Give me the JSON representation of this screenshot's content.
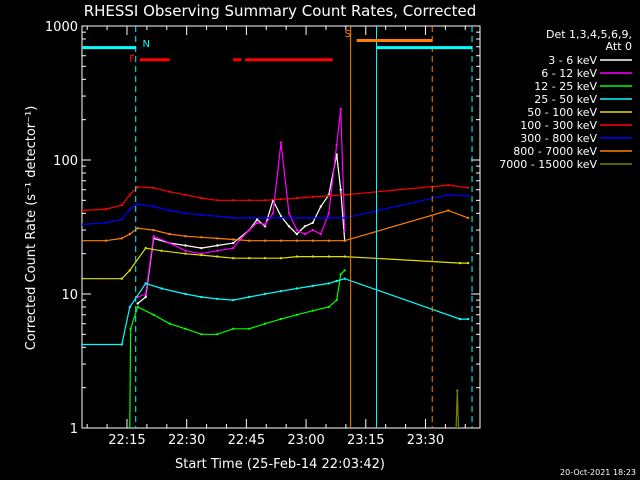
{
  "chart_data": {
    "type": "line",
    "title": "RHESSI Observing Summary Count Rates, Corrected",
    "xlabel": "Start Time (25-Feb-14 22:03:42)",
    "ylabel": "Corrected Count Rate (s⁻¹ detector⁻¹)",
    "yscale": "log",
    "ylim": [
      1,
      1000
    ],
    "xlim_minutes": [
      0,
      100
    ],
    "x_ticks": [
      {
        "label": "22:15",
        "t": 11.3
      },
      {
        "label": "22:30",
        "t": 26.3
      },
      {
        "label": "22:45",
        "t": 41.3
      },
      {
        "label": "23:00",
        "t": 56.3
      },
      {
        "label": "23:15",
        "t": 71.3
      },
      {
        "label": "23:30",
        "t": 86.3
      }
    ],
    "y_ticks": [
      {
        "label": "1",
        "v": 1
      },
      {
        "label": "10",
        "v": 10
      },
      {
        "label": "100",
        "v": 100
      },
      {
        "label": "1000",
        "v": 1000
      }
    ],
    "legend_header": [
      "Det 1,3,4,5,6,9,",
      "Att 0"
    ],
    "legend_placement": "right",
    "series": [
      {
        "name": "3 - 6 keV",
        "color": "#ffffff",
        "points": [
          [
            14,
            8.5
          ],
          [
            16,
            9.5
          ],
          [
            18,
            26
          ],
          [
            22,
            24
          ],
          [
            26,
            23
          ],
          [
            30,
            22
          ],
          [
            34,
            23
          ],
          [
            38,
            24
          ],
          [
            42,
            30
          ],
          [
            44,
            36
          ],
          [
            46,
            32
          ],
          [
            48,
            50
          ],
          [
            50,
            38
          ],
          [
            52,
            32
          ],
          [
            54,
            28
          ],
          [
            56,
            32
          ],
          [
            58,
            34
          ],
          [
            60,
            45
          ],
          [
            62,
            55
          ],
          [
            64,
            110
          ],
          [
            65,
            60
          ],
          [
            66,
            25
          ]
        ]
      },
      {
        "name": "6 - 12 keV",
        "color": "#ff00ff",
        "points": [
          [
            14,
            9.5
          ],
          [
            16,
            10
          ],
          [
            18,
            27
          ],
          [
            22,
            24
          ],
          [
            26,
            21
          ],
          [
            30,
            20
          ],
          [
            34,
            21
          ],
          [
            38,
            22
          ],
          [
            40,
            26
          ],
          [
            42,
            30
          ],
          [
            44,
            34
          ],
          [
            46,
            33
          ],
          [
            48,
            40
          ],
          [
            50,
            135
          ],
          [
            52,
            40
          ],
          [
            54,
            30
          ],
          [
            56,
            28
          ],
          [
            58,
            30
          ],
          [
            60,
            28
          ],
          [
            62,
            40
          ],
          [
            64,
            130
          ],
          [
            65,
            240
          ],
          [
            66,
            30
          ]
        ]
      },
      {
        "name": "12 - 25 keV",
        "color": "#00ff00",
        "points": [
          [
            12,
            1
          ],
          [
            12.2,
            5.5
          ],
          [
            14,
            8
          ],
          [
            18,
            7
          ],
          [
            22,
            6
          ],
          [
            26,
            5.5
          ],
          [
            30,
            5
          ],
          [
            34,
            5
          ],
          [
            38,
            5.5
          ],
          [
            42,
            5.5
          ],
          [
            46,
            6
          ],
          [
            50,
            6.5
          ],
          [
            54,
            7
          ],
          [
            58,
            7.5
          ],
          [
            62,
            8
          ],
          [
            64,
            9
          ],
          [
            65,
            14
          ],
          [
            66,
            15
          ]
        ]
      },
      {
        "name": "25 - 50 keV",
        "color": "#00ffff",
        "points": [
          [
            0,
            4.2
          ],
          [
            10,
            4.2
          ],
          [
            12,
            8
          ],
          [
            16,
            12
          ],
          [
            20,
            11
          ],
          [
            26,
            10
          ],
          [
            30,
            9.5
          ],
          [
            34,
            9.2
          ],
          [
            38,
            9
          ],
          [
            42,
            9.5
          ],
          [
            46,
            10
          ],
          [
            50,
            10.5
          ],
          [
            54,
            11
          ],
          [
            58,
            11.5
          ],
          [
            62,
            12
          ],
          [
            64,
            12.5
          ],
          [
            66,
            13
          ],
          [
            95,
            6.5
          ],
          [
            97,
            6.5
          ]
        ]
      },
      {
        "name": "50 - 100 keV",
        "color": "#e0e000",
        "points": [
          [
            0,
            13
          ],
          [
            10,
            13
          ],
          [
            12,
            15
          ],
          [
            16,
            22
          ],
          [
            20,
            21
          ],
          [
            26,
            20
          ],
          [
            30,
            19.5
          ],
          [
            34,
            19
          ],
          [
            38,
            18.5
          ],
          [
            42,
            18.5
          ],
          [
            46,
            18.5
          ],
          [
            50,
            18.5
          ],
          [
            54,
            19
          ],
          [
            58,
            19
          ],
          [
            62,
            19
          ],
          [
            66,
            19
          ],
          [
            95,
            17
          ],
          [
            97,
            17
          ]
        ]
      },
      {
        "name": "100 - 300 keV",
        "color": "#ff0000",
        "points": [
          [
            0,
            42
          ],
          [
            6,
            43
          ],
          [
            10,
            46
          ],
          [
            12,
            55
          ],
          [
            14,
            63
          ],
          [
            18,
            62
          ],
          [
            22,
            58
          ],
          [
            26,
            55
          ],
          [
            30,
            52
          ],
          [
            34,
            50
          ],
          [
            38,
            50
          ],
          [
            42,
            50
          ],
          [
            46,
            50
          ],
          [
            50,
            51
          ],
          [
            54,
            52
          ],
          [
            58,
            53
          ],
          [
            62,
            54
          ],
          [
            66,
            55
          ],
          [
            92,
            65
          ],
          [
            97,
            62
          ]
        ]
      },
      {
        "name": "300 - 800 keV",
        "color": "#0000ff",
        "points": [
          [
            0,
            33
          ],
          [
            6,
            34
          ],
          [
            10,
            36
          ],
          [
            12,
            43
          ],
          [
            14,
            47
          ],
          [
            18,
            45
          ],
          [
            22,
            42
          ],
          [
            26,
            40
          ],
          [
            30,
            39
          ],
          [
            34,
            38
          ],
          [
            38,
            37
          ],
          [
            42,
            37
          ],
          [
            46,
            37
          ],
          [
            50,
            37
          ],
          [
            54,
            37
          ],
          [
            58,
            37
          ],
          [
            62,
            37
          ],
          [
            66,
            37
          ],
          [
            92,
            55
          ],
          [
            97,
            54
          ]
        ]
      },
      {
        "name": "800 - 7000 keV",
        "color": "#ff8000",
        "points": [
          [
            0,
            25
          ],
          [
            6,
            25
          ],
          [
            10,
            26
          ],
          [
            12,
            28
          ],
          [
            14,
            31
          ],
          [
            18,
            30
          ],
          [
            22,
            28
          ],
          [
            26,
            27
          ],
          [
            30,
            26.5
          ],
          [
            34,
            26
          ],
          [
            38,
            25.5
          ],
          [
            42,
            25
          ],
          [
            46,
            25
          ],
          [
            50,
            25
          ],
          [
            54,
            25
          ],
          [
            58,
            25
          ],
          [
            62,
            25
          ],
          [
            66,
            25
          ],
          [
            92,
            42
          ],
          [
            97,
            37
          ]
        ]
      },
      {
        "name": "7000 - 15000 keV",
        "color": "#808000",
        "points": [
          [
            94,
            1
          ],
          [
            94.3,
            1.9
          ],
          [
            94.6,
            1
          ]
        ]
      }
    ],
    "annotations": [
      {
        "label": "N",
        "color": "#00ffff"
      },
      {
        "label": "F",
        "color": "#ff0000"
      },
      {
        "label": "S",
        "color": "#ff8000"
      }
    ],
    "state_bars": [
      {
        "label": "N",
        "color": "#00ffff",
        "y": 690,
        "segments": [
          [
            0,
            13.5
          ],
          [
            74,
            98
          ]
        ]
      },
      {
        "label": "F",
        "color": "#ff0000",
        "y": 560,
        "segments": [
          [
            14.5,
            22
          ],
          [
            38,
            40
          ],
          [
            41,
            63
          ]
        ]
      },
      {
        "label": "S",
        "color": "#ff8000",
        "y": 780,
        "segments": [
          [
            69,
            88
          ]
        ]
      }
    ],
    "vlines": [
      {
        "t": 13.5,
        "color": "#00ffff",
        "dashed": true
      },
      {
        "t": 67.5,
        "color": "#ff8000",
        "dashed": false
      },
      {
        "t": 74,
        "color": "#00ffff",
        "dashed": false
      },
      {
        "t": 88,
        "color": "#ff8000",
        "dashed": true
      },
      {
        "t": 98,
        "color": "#00ffff",
        "dashed": true
      }
    ],
    "timestamp": "20-Oct-2021 18:23"
  }
}
